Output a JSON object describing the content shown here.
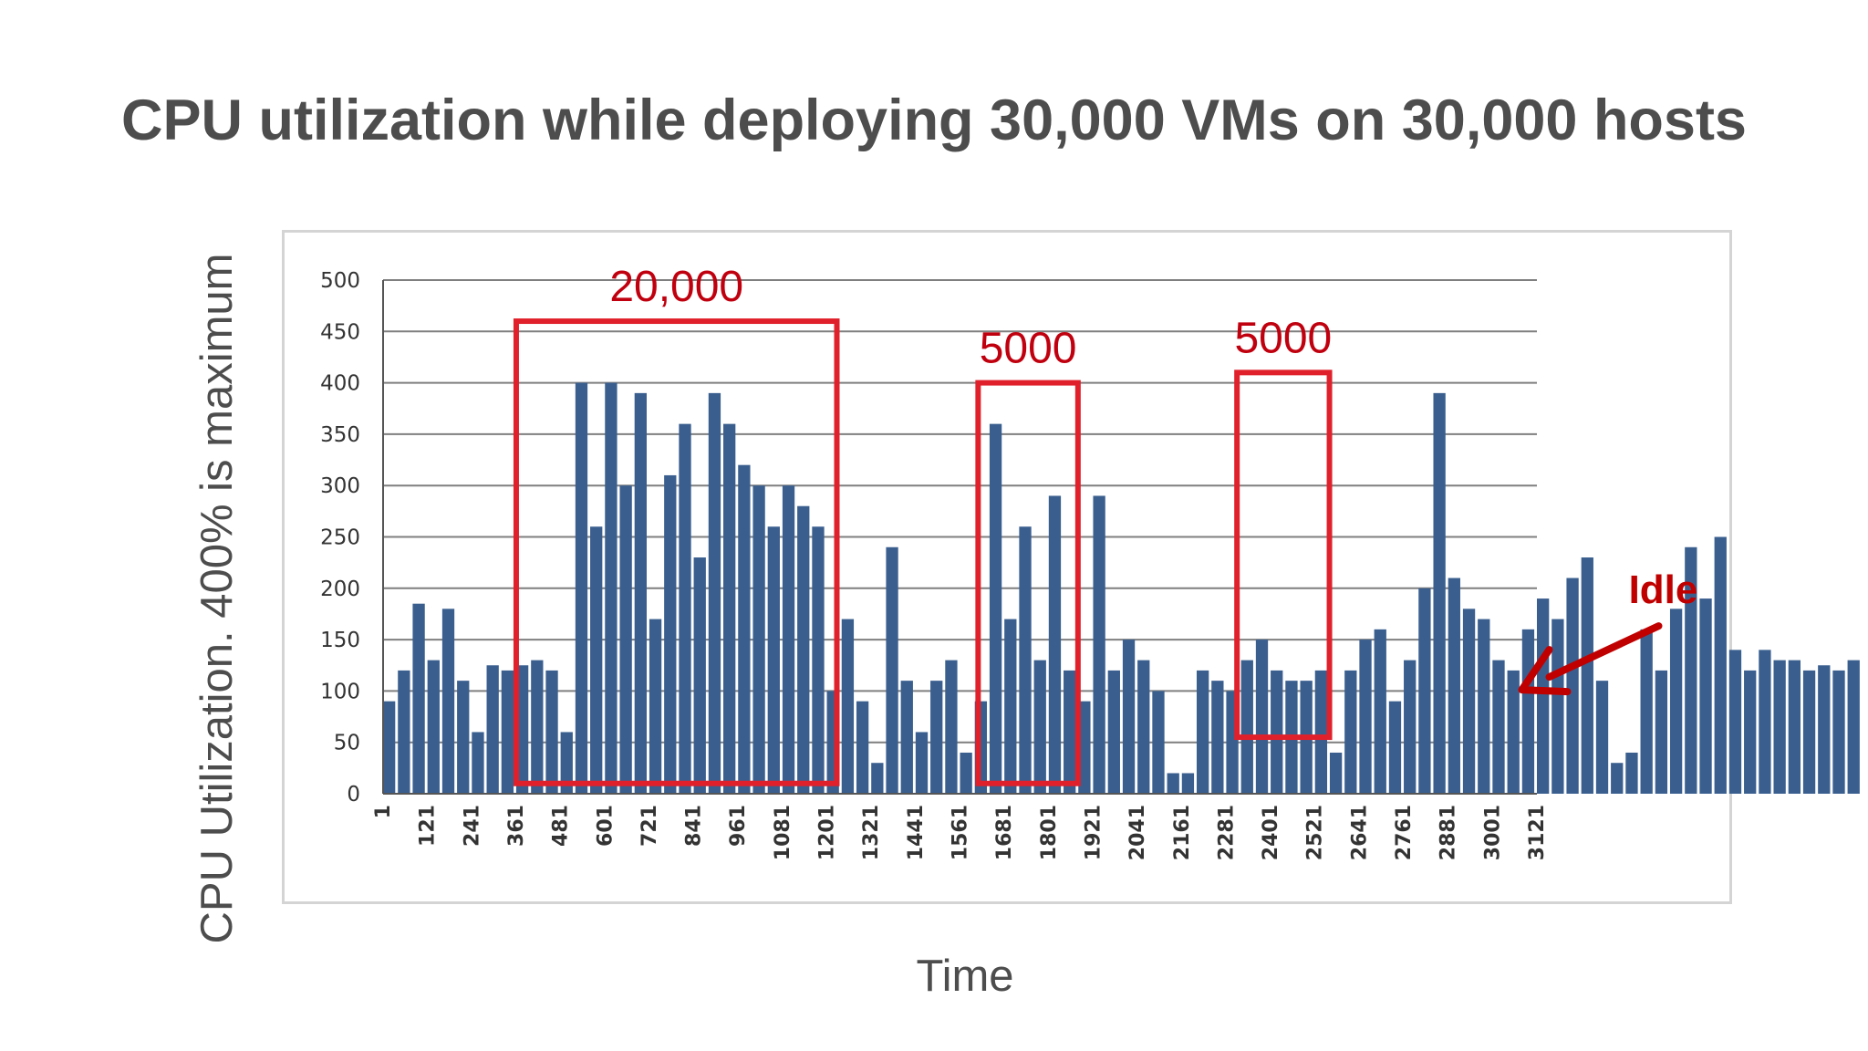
{
  "title": "CPU utilization while deploying 30,000 VMs on 30,000 hosts",
  "colors": {
    "bars": "#3a5f8f",
    "grid": "#7f7f7f",
    "highlight": "#e0212b",
    "annotation_text": "#c0000e",
    "title_text": "#4d4d4d"
  },
  "annotations": {
    "idle_label": "Idle",
    "boxes": [
      {
        "label": "20,000",
        "x_start": 361,
        "x_end": 1228,
        "y_low": 10,
        "y_high": 460
      },
      {
        "label": "5000",
        "x_start": 1610,
        "x_end": 1880,
        "y_low": 10,
        "y_high": 400
      },
      {
        "label": "5000",
        "x_start": 2310,
        "x_end": 2560,
        "y_low": 55,
        "y_high": 410
      }
    ],
    "idle_arrow_target": {
      "x": 3100,
      "y": 150
    }
  },
  "chart_data": {
    "type": "bar",
    "title": "",
    "xlabel": "Time",
    "ylabel": "CPU Utilization.  400% is maximum",
    "ylim": [
      0,
      500
    ],
    "yticks": [
      0,
      50,
      100,
      150,
      200,
      250,
      300,
      350,
      400,
      450,
      500
    ],
    "xlim": [
      1,
      3121
    ],
    "xticks": [
      1,
      121,
      241,
      361,
      481,
      601,
      721,
      841,
      961,
      1081,
      1201,
      1321,
      1441,
      1561,
      1681,
      1801,
      1921,
      2041,
      2161,
      2281,
      2401,
      2521,
      2641,
      2761,
      2881,
      3001,
      3121
    ],
    "grid": true,
    "legend": "none",
    "series": [
      {
        "sample_interval": 40,
        "x_start": 1,
        "values": [
          90,
          120,
          185,
          130,
          180,
          110,
          60,
          125,
          120,
          125,
          130,
          120,
          60,
          400,
          260,
          400,
          300,
          390,
          170,
          310,
          360,
          230,
          390,
          360,
          320,
          300,
          260,
          300,
          280,
          260,
          100,
          170,
          90,
          30,
          240,
          110,
          60,
          110,
          130,
          40,
          90,
          360,
          170,
          260,
          130,
          290,
          120,
          90,
          290,
          120,
          150,
          130,
          100,
          20,
          20,
          120,
          110,
          100,
          130,
          150,
          120,
          110,
          110,
          120,
          40,
          120,
          150,
          160,
          90,
          130,
          200,
          390,
          210,
          180,
          170,
          130,
          120,
          160,
          190,
          170,
          210,
          230,
          110,
          30,
          40,
          160,
          120,
          180,
          240,
          190,
          250,
          140,
          120,
          140,
          130,
          130,
          120,
          125,
          120,
          130
        ]
      }
    ]
  }
}
